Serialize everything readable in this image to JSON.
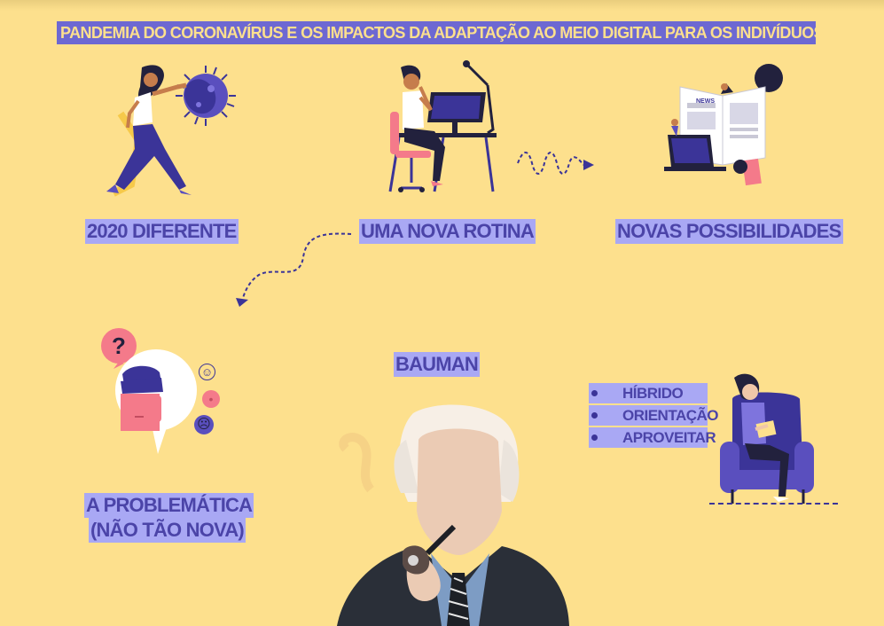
{
  "title": "PANDEMIA DO CORONAVÍRUS E OS IMPACTOS DA ADAPTAÇÃO AO MEIO DIGITAL PARA OS INDIVÍDUOS",
  "labels": {
    "diferente": "2020 DIFERENTE",
    "rotina": "UMA NOVA ROTINA",
    "possibilidades": "NOVAS POSSIBILIDADES",
    "problematica_1": "A PROBLEMÁTICA",
    "problematica_2": "(NÃO TÃO NOVA)",
    "bauman": "BAUMAN"
  },
  "bullets": [
    "HÍBRIDO",
    "ORIENTAÇÃO",
    "APROVEITAR"
  ],
  "bubble_text": "?",
  "newspaper_text": "NEWS",
  "colors": {
    "background": "#fde08d",
    "highlight": "#a9a8f4",
    "text": "#4b44a8",
    "accent": "#3b3498",
    "pink": "#f47a8a"
  },
  "icons": {
    "virus_fighter": "woman-fighting-virus-illustration",
    "desk_worker": "man-at-computer-illustration",
    "newspaper": "newspaper-laptop-illustration",
    "question_head": "confused-man-illustration",
    "bauman_portrait": "bauman-portrait-illustration",
    "reader": "woman-reading-in-armchair-illustration"
  }
}
